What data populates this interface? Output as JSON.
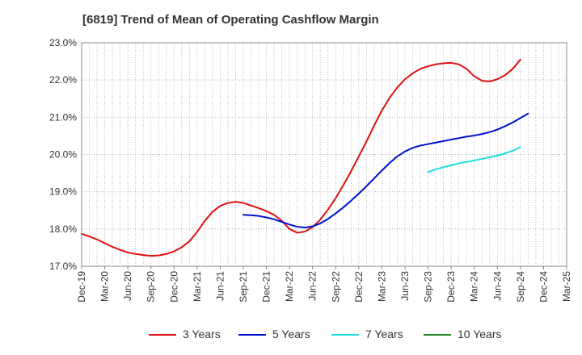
{
  "title": "[6819]  Trend of Mean of Operating Cashflow Margin",
  "chart_data": {
    "type": "line",
    "title": "[6819]  Trend of Mean of Operating Cashflow Margin",
    "xlabel": "",
    "ylabel": "",
    "ylim": [
      17.0,
      23.0
    ],
    "y_ticks": [
      "17.0%",
      "18.0%",
      "19.0%",
      "20.0%",
      "21.0%",
      "22.0%",
      "23.0%"
    ],
    "x_ticks": [
      "Dec-19",
      "Mar-20",
      "Jun-20",
      "Sep-20",
      "Dec-20",
      "Mar-21",
      "Jun-21",
      "Sep-21",
      "Dec-21",
      "Mar-22",
      "Jun-22",
      "Sep-22",
      "Dec-22",
      "Mar-23",
      "Jun-23",
      "Sep-23",
      "Dec-23",
      "Mar-24",
      "Jun-24",
      "Sep-24",
      "Dec-24",
      "Mar-25"
    ],
    "grid": true,
    "legend_position": "bottom",
    "series": [
      {
        "name": "3 Years",
        "color": "#dd1111",
        "values": [
          [
            "Dec-19",
            17.87
          ],
          [
            "Jan-20",
            17.8
          ],
          [
            "Feb-20",
            17.72
          ],
          [
            "Mar-20",
            17.62
          ],
          [
            "Apr-20",
            17.52
          ],
          [
            "May-20",
            17.44
          ],
          [
            "Jun-20",
            17.37
          ],
          [
            "Jul-20",
            17.33
          ],
          [
            "Aug-20",
            17.3
          ],
          [
            "Sep-20",
            17.28
          ],
          [
            "Oct-20",
            17.29
          ],
          [
            "Nov-20",
            17.33
          ],
          [
            "Dec-20",
            17.4
          ],
          [
            "Jan-21",
            17.51
          ],
          [
            "Feb-21",
            17.67
          ],
          [
            "Mar-21",
            17.92
          ],
          [
            "Apr-21",
            18.22
          ],
          [
            "May-21",
            18.46
          ],
          [
            "Jun-21",
            18.62
          ],
          [
            "Jul-21",
            18.7
          ],
          [
            "Aug-21",
            18.73
          ],
          [
            "Sep-21",
            18.7
          ],
          [
            "Oct-21",
            18.63
          ],
          [
            "Nov-21",
            18.56
          ],
          [
            "Dec-21",
            18.48
          ],
          [
            "Jan-22",
            18.38
          ],
          [
            "Feb-22",
            18.22
          ],
          [
            "Mar-22",
            18.0
          ],
          [
            "Apr-22",
            17.9
          ],
          [
            "May-22",
            17.93
          ],
          [
            "Jun-22",
            18.05
          ],
          [
            "Jul-22",
            18.25
          ],
          [
            "Aug-22",
            18.52
          ],
          [
            "Sep-22",
            18.83
          ],
          [
            "Oct-22",
            19.18
          ],
          [
            "Nov-22",
            19.55
          ],
          [
            "Dec-22",
            19.95
          ],
          [
            "Jan-23",
            20.35
          ],
          [
            "Feb-23",
            20.78
          ],
          [
            "Mar-23",
            21.18
          ],
          [
            "Apr-23",
            21.52
          ],
          [
            "May-23",
            21.8
          ],
          [
            "Jun-23",
            22.02
          ],
          [
            "Jul-23",
            22.18
          ],
          [
            "Aug-23",
            22.3
          ],
          [
            "Sep-23",
            22.37
          ],
          [
            "Oct-23",
            22.42
          ],
          [
            "Nov-23",
            22.45
          ],
          [
            "Dec-23",
            22.46
          ],
          [
            "Jan-24",
            22.42
          ],
          [
            "Feb-24",
            22.3
          ],
          [
            "Mar-24",
            22.1
          ],
          [
            "Apr-24",
            21.98
          ],
          [
            "May-24",
            21.96
          ],
          [
            "Jun-24",
            22.02
          ],
          [
            "Jul-24",
            22.13
          ],
          [
            "Aug-24",
            22.3
          ],
          [
            "Sep-24",
            22.55
          ]
        ]
      },
      {
        "name": "5 Years",
        "color": "#0011cc",
        "values": [
          [
            "Sep-21",
            18.38
          ],
          [
            "Oct-21",
            18.37
          ],
          [
            "Nov-21",
            18.35
          ],
          [
            "Dec-21",
            18.31
          ],
          [
            "Jan-22",
            18.26
          ],
          [
            "Feb-22",
            18.19
          ],
          [
            "Mar-22",
            18.12
          ],
          [
            "Apr-22",
            18.06
          ],
          [
            "May-22",
            18.04
          ],
          [
            "Jun-22",
            18.07
          ],
          [
            "Jul-22",
            18.15
          ],
          [
            "Aug-22",
            18.27
          ],
          [
            "Sep-22",
            18.42
          ],
          [
            "Oct-22",
            18.58
          ],
          [
            "Nov-22",
            18.76
          ],
          [
            "Dec-22",
            18.95
          ],
          [
            "Jan-23",
            19.15
          ],
          [
            "Feb-23",
            19.36
          ],
          [
            "Mar-23",
            19.57
          ],
          [
            "Apr-23",
            19.77
          ],
          [
            "May-23",
            19.95
          ],
          [
            "Jun-23",
            20.08
          ],
          [
            "Jul-23",
            20.18
          ],
          [
            "Aug-23",
            20.24
          ],
          [
            "Sep-23",
            20.28
          ],
          [
            "Oct-23",
            20.32
          ],
          [
            "Nov-23",
            20.36
          ],
          [
            "Dec-23",
            20.4
          ],
          [
            "Jan-24",
            20.44
          ],
          [
            "Feb-24",
            20.48
          ],
          [
            "Mar-24",
            20.51
          ],
          [
            "Apr-24",
            20.55
          ],
          [
            "May-24",
            20.6
          ],
          [
            "Jun-24",
            20.67
          ],
          [
            "Jul-24",
            20.76
          ],
          [
            "Aug-24",
            20.86
          ],
          [
            "Sep-24",
            20.98
          ],
          [
            "Oct-24",
            21.1
          ]
        ]
      },
      {
        "name": "7 Years",
        "color": "#22dddd",
        "values": [
          [
            "Sep-23",
            19.53
          ],
          [
            "Oct-23",
            19.6
          ],
          [
            "Nov-23",
            19.66
          ],
          [
            "Dec-23",
            19.71
          ],
          [
            "Jan-24",
            19.76
          ],
          [
            "Feb-24",
            19.8
          ],
          [
            "Mar-24",
            19.84
          ],
          [
            "Apr-24",
            19.88
          ],
          [
            "May-24",
            19.93
          ],
          [
            "Jun-24",
            19.97
          ],
          [
            "Jul-24",
            20.03
          ],
          [
            "Aug-24",
            20.1
          ],
          [
            "Sep-24",
            20.2
          ]
        ]
      },
      {
        "name": "10 Years",
        "color": "#228822",
        "values": []
      }
    ]
  }
}
